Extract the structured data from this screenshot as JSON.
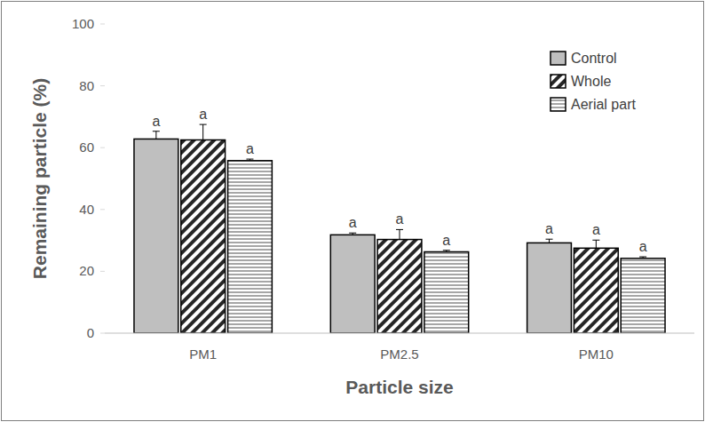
{
  "chart_data": {
    "type": "bar",
    "x_label": "Particle size",
    "y_label": "Remaining particle (%)",
    "categories": [
      "PM1",
      "PM2.5",
      "PM10"
    ],
    "series": [
      {
        "name": "Control",
        "color": "#bfbfbf",
        "values": [
          62.8,
          31.8,
          29.2
        ],
        "errors": [
          2.5,
          0.6,
          1.2
        ],
        "letters": [
          "a",
          "a",
          "a"
        ]
      },
      {
        "name": "Whole",
        "color": "#262626",
        "values": [
          62.5,
          30.3,
          27.5
        ],
        "errors": [
          5.0,
          3.2,
          2.6
        ],
        "letters": [
          "a",
          "a",
          "a"
        ]
      },
      {
        "name": "Aerial part",
        "color": "#a6a6a6",
        "values": [
          55.8,
          26.3,
          24.2
        ],
        "errors": [
          0.5,
          0.5,
          0.5
        ],
        "letters": [
          "a",
          "a",
          "a"
        ]
      }
    ],
    "ylim": [
      0,
      100
    ],
    "yticks": [
      0,
      20,
      40,
      60,
      80,
      100
    ],
    "grid": false,
    "legend": "top-right"
  }
}
